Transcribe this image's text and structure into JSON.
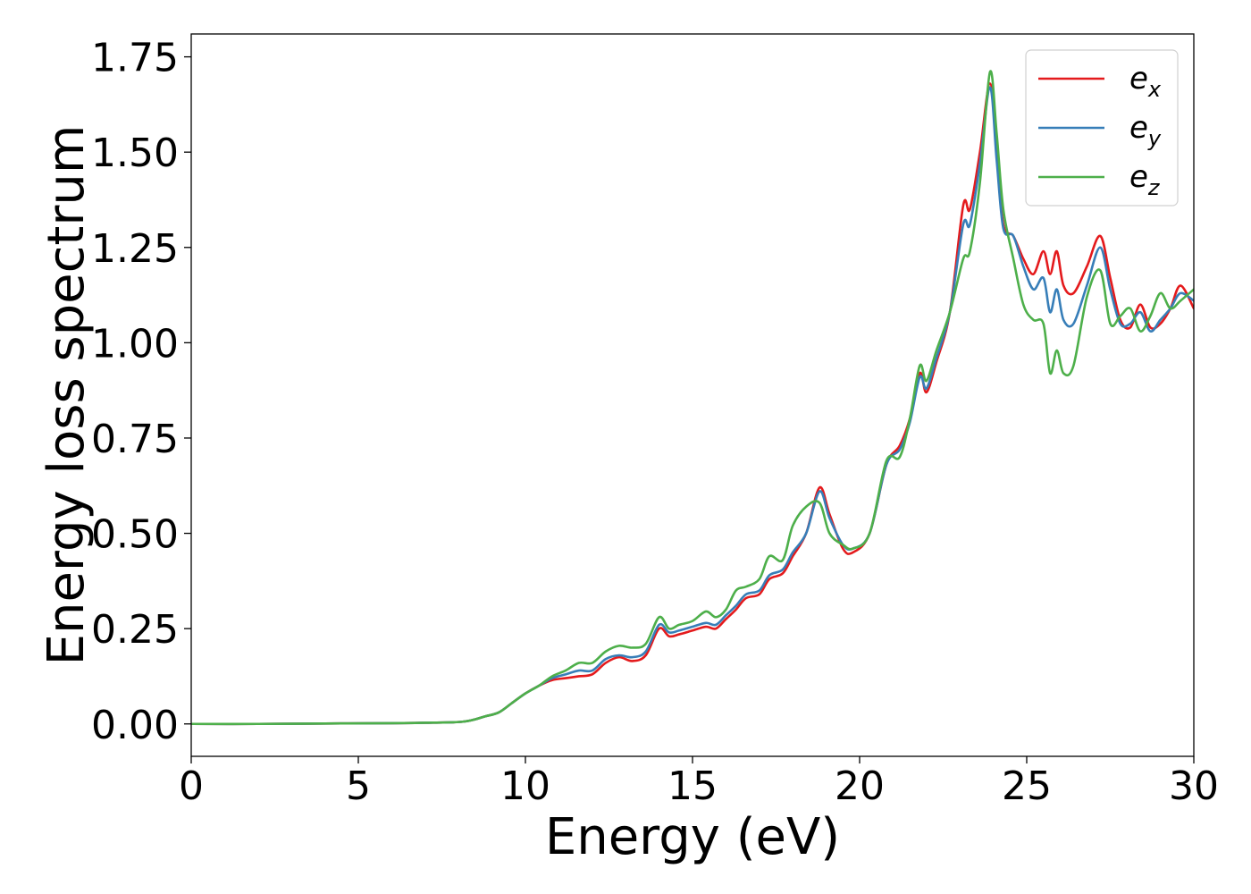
{
  "chart_data": {
    "type": "line",
    "xlabel": "Energy (eV)",
    "ylabel": "Energy loss spectrum",
    "xlim": [
      0,
      30
    ],
    "ylim": [
      -0.085,
      1.81
    ],
    "xticks": [
      0,
      5,
      10,
      15,
      20,
      25,
      30
    ],
    "xtick_labels": [
      "0",
      "5",
      "10",
      "15",
      "20",
      "25",
      "30"
    ],
    "yticks": [
      0.0,
      0.25,
      0.5,
      0.75,
      1.0,
      1.25,
      1.5,
      1.75
    ],
    "ytick_labels": [
      "0.00",
      "0.25",
      "0.50",
      "0.75",
      "1.00",
      "1.25",
      "1.50",
      "1.75"
    ],
    "grid": false,
    "legend_position": "top-right",
    "series": [
      {
        "name": "e_x",
        "label_main": "e",
        "label_sub": "x",
        "color": "#e41a1c",
        "x": [
          0,
          2,
          4,
          6,
          7,
          8,
          8.4,
          8.8,
          9.2,
          9.6,
          10,
          10.4,
          10.8,
          11.2,
          11.6,
          12,
          12.4,
          12.8,
          13.2,
          13.6,
          14,
          14.3,
          14.6,
          15,
          15.4,
          15.7,
          16,
          16.3,
          16.6,
          17,
          17.3,
          17.7,
          18,
          18.4,
          18.8,
          19.1,
          19.5,
          19.8,
          20.3,
          20.8,
          21.2,
          21.5,
          21.8,
          22,
          22.3,
          22.7,
          23.1,
          23.3,
          23.6,
          23.9,
          24.1,
          24.3,
          24.6,
          24.9,
          25.2,
          25.5,
          25.7,
          25.9,
          26.1,
          26.4,
          26.8,
          27.2,
          27.5,
          27.8,
          28.1,
          28.4,
          28.7,
          29,
          29.3,
          29.6,
          30
        ],
        "y": [
          0.0,
          0.0,
          0.001,
          0.002,
          0.003,
          0.005,
          0.01,
          0.02,
          0.03,
          0.055,
          0.08,
          0.1,
          0.115,
          0.12,
          0.125,
          0.13,
          0.16,
          0.175,
          0.165,
          0.18,
          0.25,
          0.23,
          0.235,
          0.245,
          0.255,
          0.25,
          0.275,
          0.3,
          0.33,
          0.34,
          0.38,
          0.395,
          0.44,
          0.5,
          0.62,
          0.55,
          0.46,
          0.45,
          0.5,
          0.68,
          0.73,
          0.8,
          0.92,
          0.87,
          0.95,
          1.08,
          1.36,
          1.35,
          1.5,
          1.68,
          1.5,
          1.31,
          1.28,
          1.22,
          1.18,
          1.24,
          1.18,
          1.24,
          1.15,
          1.13,
          1.2,
          1.28,
          1.17,
          1.06,
          1.04,
          1.1,
          1.04,
          1.05,
          1.09,
          1.15,
          1.09
        ]
      },
      {
        "name": "e_y",
        "label_main": "e",
        "label_sub": "y",
        "color": "#377eb8",
        "x": [
          0,
          2,
          4,
          6,
          7,
          8,
          8.4,
          8.8,
          9.2,
          9.6,
          10,
          10.4,
          10.8,
          11.2,
          11.6,
          12,
          12.4,
          12.8,
          13.2,
          13.6,
          14,
          14.3,
          14.6,
          15,
          15.4,
          15.7,
          16,
          16.3,
          16.6,
          17,
          17.3,
          17.7,
          18,
          18.4,
          18.8,
          19.1,
          19.5,
          19.8,
          20.3,
          20.8,
          21.2,
          21.5,
          21.8,
          22,
          22.3,
          22.7,
          23.1,
          23.3,
          23.6,
          23.9,
          24.1,
          24.3,
          24.6,
          24.9,
          25.2,
          25.5,
          25.7,
          25.9,
          26.1,
          26.4,
          26.8,
          27.2,
          27.5,
          27.8,
          28.1,
          28.4,
          28.7,
          29,
          29.3,
          29.6,
          30
        ],
        "y": [
          0.0,
          0.0,
          0.001,
          0.002,
          0.003,
          0.005,
          0.01,
          0.02,
          0.03,
          0.055,
          0.08,
          0.1,
          0.12,
          0.13,
          0.14,
          0.14,
          0.17,
          0.18,
          0.175,
          0.19,
          0.26,
          0.24,
          0.245,
          0.255,
          0.265,
          0.26,
          0.285,
          0.31,
          0.34,
          0.35,
          0.39,
          0.405,
          0.45,
          0.5,
          0.61,
          0.54,
          0.47,
          0.46,
          0.5,
          0.68,
          0.72,
          0.79,
          0.91,
          0.88,
          0.96,
          1.08,
          1.31,
          1.31,
          1.47,
          1.67,
          1.48,
          1.3,
          1.28,
          1.2,
          1.14,
          1.17,
          1.08,
          1.14,
          1.06,
          1.05,
          1.15,
          1.25,
          1.14,
          1.05,
          1.05,
          1.08,
          1.03,
          1.06,
          1.09,
          1.13,
          1.11
        ]
      },
      {
        "name": "e_z",
        "label_main": "e",
        "label_sub": "z",
        "color": "#4daf4a",
        "x": [
          0,
          2,
          4,
          6,
          7,
          8,
          8.4,
          8.8,
          9.2,
          9.6,
          10,
          10.4,
          10.8,
          11.2,
          11.6,
          12,
          12.4,
          12.8,
          13.2,
          13.6,
          14,
          14.3,
          14.6,
          15,
          15.4,
          15.7,
          16,
          16.3,
          16.6,
          17,
          17.3,
          17.7,
          18,
          18.4,
          18.8,
          19.1,
          19.5,
          19.8,
          20.3,
          20.8,
          21.2,
          21.5,
          21.8,
          22,
          22.3,
          22.7,
          23.1,
          23.3,
          23.6,
          23.9,
          24.1,
          24.3,
          24.6,
          24.9,
          25.2,
          25.5,
          25.7,
          25.9,
          26.1,
          26.4,
          26.8,
          27.2,
          27.5,
          27.8,
          28.1,
          28.4,
          28.7,
          29,
          29.3,
          29.6,
          30
        ],
        "y": [
          0.0,
          0.0,
          0.001,
          0.002,
          0.003,
          0.005,
          0.01,
          0.02,
          0.03,
          0.055,
          0.08,
          0.1,
          0.125,
          0.14,
          0.16,
          0.16,
          0.19,
          0.205,
          0.2,
          0.21,
          0.28,
          0.25,
          0.26,
          0.27,
          0.295,
          0.28,
          0.3,
          0.35,
          0.36,
          0.38,
          0.44,
          0.43,
          0.52,
          0.57,
          0.58,
          0.5,
          0.47,
          0.46,
          0.5,
          0.69,
          0.7,
          0.8,
          0.94,
          0.9,
          0.98,
          1.08,
          1.22,
          1.24,
          1.42,
          1.71,
          1.55,
          1.35,
          1.22,
          1.1,
          1.06,
          1.05,
          0.92,
          0.98,
          0.92,
          0.94,
          1.12,
          1.19,
          1.05,
          1.07,
          1.09,
          1.03,
          1.07,
          1.13,
          1.09,
          1.11,
          1.14
        ]
      }
    ]
  }
}
